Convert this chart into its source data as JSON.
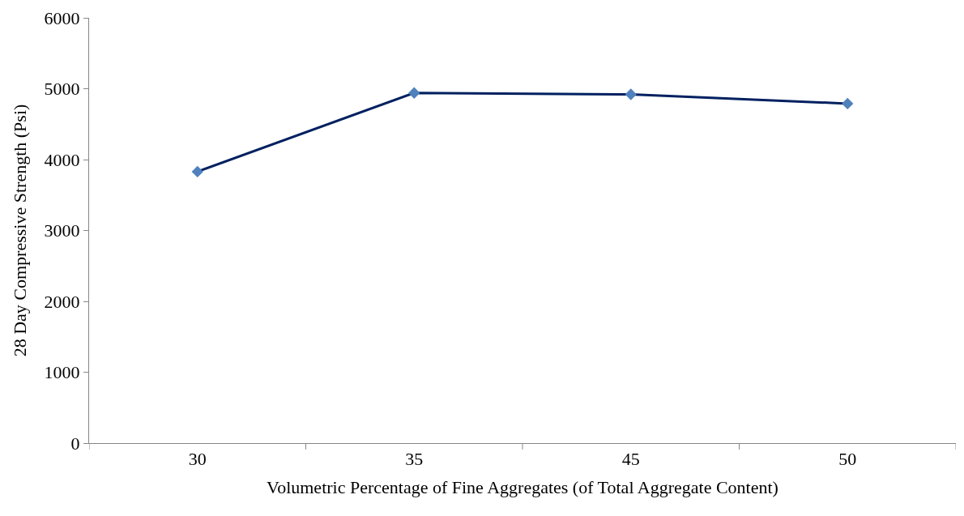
{
  "chart_data": {
    "type": "line",
    "xlabel": "Volumetric Percentage of Fine Aggregates (of Total Aggregate Content)",
    "ylabel": "28 Day Compressive Strength (Psi)",
    "categories": [
      "30",
      "35",
      "45",
      "50"
    ],
    "series": [
      {
        "color": "#002060",
        "colors": [
          "#4f81bd",
          "#4f81bd",
          "#4f81bd",
          "#4f81bd"
        ],
        "values": [
          3830,
          4940,
          4920,
          4790
        ]
      }
    ],
    "ylim": [
      0,
      6000
    ],
    "yticks": [
      0,
      1000,
      2000,
      3000,
      4000,
      5000,
      6000
    ],
    "marker": "diamond",
    "line_style": "solid"
  }
}
